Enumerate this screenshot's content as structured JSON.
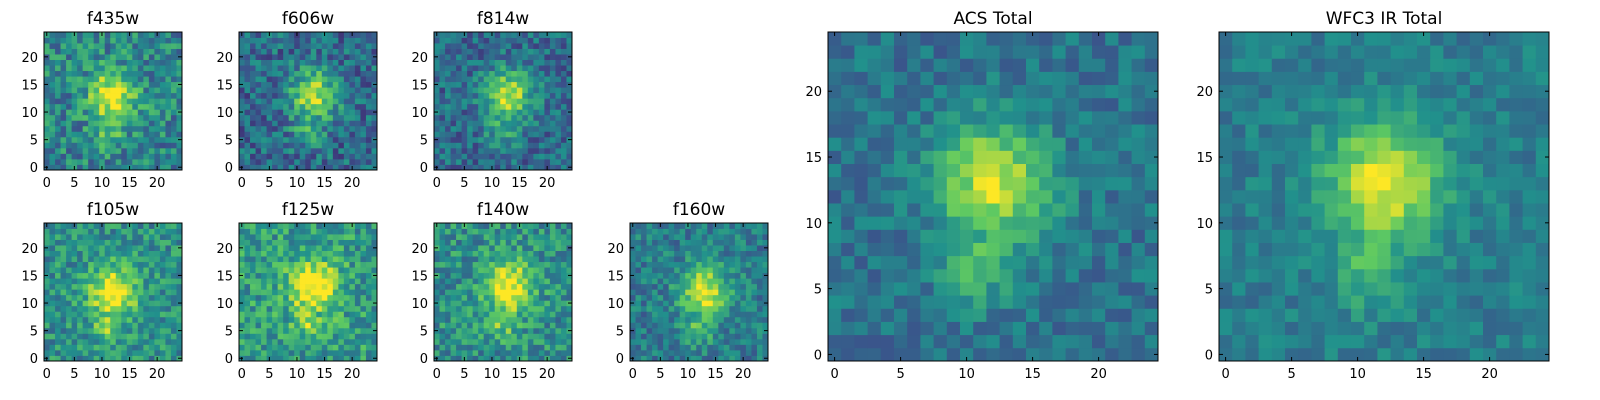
{
  "colormap": "viridis",
  "colors": {
    "viridis": [
      "#440154",
      "#3b528b",
      "#21918c",
      "#5ec962",
      "#fde725"
    ]
  },
  "chart_data": [
    {
      "type": "heatmap",
      "title": "f435w",
      "size": 25,
      "xticks": [
        0,
        5,
        10,
        15,
        20
      ],
      "yticks": [
        0,
        5,
        10,
        15,
        20
      ],
      "peak": [
        12,
        13
      ],
      "seed": 11,
      "noise": 0.42,
      "base": 0.45
    },
    {
      "type": "heatmap",
      "title": "f606w",
      "size": 25,
      "xticks": [
        0,
        5,
        10,
        15,
        20
      ],
      "yticks": [
        0,
        5,
        10,
        15,
        20
      ],
      "peak": [
        13,
        13
      ],
      "seed": 23,
      "noise": 0.38,
      "base": 0.35
    },
    {
      "type": "heatmap",
      "title": "f814w",
      "size": 25,
      "xticks": [
        0,
        5,
        10,
        15,
        20
      ],
      "yticks": [
        0,
        5,
        10,
        15,
        20
      ],
      "peak": [
        13,
        13
      ],
      "seed": 37,
      "noise": 0.34,
      "base": 0.35
    },
    {
      "type": "heatmap",
      "title": "f105w",
      "size": 25,
      "xticks": [
        0,
        5,
        10,
        15,
        20
      ],
      "yticks": [
        0,
        5,
        10,
        15,
        20
      ],
      "peak": [
        12,
        12
      ],
      "seed": 41,
      "noise": 0.36,
      "base": 0.5
    },
    {
      "type": "heatmap",
      "title": "f125w",
      "size": 25,
      "xticks": [
        0,
        5,
        10,
        15,
        20
      ],
      "yticks": [
        0,
        5,
        10,
        15,
        20
      ],
      "peak": [
        13,
        13
      ],
      "seed": 53,
      "noise": 0.4,
      "base": 0.55
    },
    {
      "type": "heatmap",
      "title": "f140w",
      "size": 25,
      "xticks": [
        0,
        5,
        10,
        15,
        20
      ],
      "yticks": [
        0,
        5,
        10,
        15,
        20
      ],
      "peak": [
        13,
        13
      ],
      "seed": 67,
      "noise": 0.38,
      "base": 0.5
    },
    {
      "type": "heatmap",
      "title": "f160w",
      "size": 25,
      "xticks": [
        0,
        5,
        10,
        15,
        20
      ],
      "yticks": [
        0,
        5,
        10,
        15,
        20
      ],
      "peak": [
        13,
        12
      ],
      "seed": 79,
      "noise": 0.32,
      "base": 0.42
    },
    {
      "type": "heatmap",
      "title": "ACS Total",
      "size": 25,
      "xticks": [
        0,
        5,
        10,
        15,
        20
      ],
      "yticks": [
        0,
        5,
        10,
        15,
        20
      ],
      "peak": [
        12,
        13
      ],
      "seed": 97,
      "noise": 0.24,
      "base": 0.38
    },
    {
      "type": "heatmap",
      "title": "WFC3 IR Total",
      "size": 25,
      "xticks": [
        0,
        5,
        10,
        15,
        20
      ],
      "yticks": [
        0,
        5,
        10,
        15,
        20
      ],
      "peak": [
        12,
        13
      ],
      "seed": 113,
      "noise": 0.2,
      "base": 0.42
    }
  ]
}
